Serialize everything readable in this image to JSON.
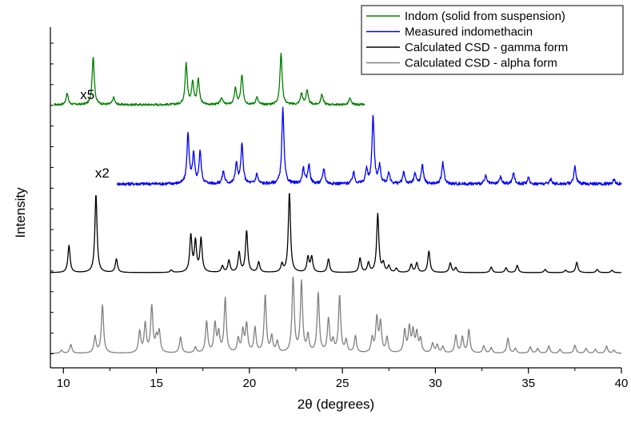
{
  "chart_data": {
    "type": "line",
    "xlabel": "2θ (degrees)",
    "ylabel": "Intensity",
    "xlim": [
      9.3,
      40
    ],
    "x_ticks": [
      10,
      15,
      20,
      25,
      30,
      35,
      40
    ],
    "grid": false,
    "legend_position": "top-right",
    "annotations": [
      {
        "text": "x5",
        "x": 10.9,
        "series": "Indom (solid from suspension)"
      },
      {
        "text": "x2",
        "x": 11.7,
        "series": "Measured indomethacin"
      }
    ],
    "series": [
      {
        "name": "Indom (solid from suspension)",
        "color": "#008000",
        "x_range": [
          9.5,
          26.2
        ],
        "noise": 1.3,
        "peaks": [
          [
            10.2,
            14
          ],
          [
            11.6,
            60
          ],
          [
            12.7,
            9
          ],
          [
            16.6,
            51
          ],
          [
            16.95,
            28
          ],
          [
            17.25,
            31
          ],
          [
            18.5,
            9
          ],
          [
            19.25,
            20
          ],
          [
            19.6,
            37
          ],
          [
            20.4,
            9
          ],
          [
            21.7,
            64
          ],
          [
            22.8,
            14
          ],
          [
            23.1,
            18
          ],
          [
            23.9,
            13
          ],
          [
            25.4,
            8
          ]
        ]
      },
      {
        "name": "Measured indomethacin",
        "color": "#0000ff",
        "x_range": [
          12.9,
          40
        ],
        "noise": 1.6,
        "peaks": [
          [
            16.7,
            52
          ],
          [
            17.0,
            30
          ],
          [
            17.35,
            33
          ],
          [
            18.6,
            13
          ],
          [
            19.3,
            21
          ],
          [
            19.6,
            41
          ],
          [
            20.4,
            10
          ],
          [
            21.8,
            78
          ],
          [
            22.9,
            16
          ],
          [
            23.2,
            20
          ],
          [
            24.0,
            16
          ],
          [
            25.6,
            12
          ],
          [
            26.3,
            14
          ],
          [
            26.65,
            71
          ],
          [
            27.0,
            18
          ],
          [
            27.5,
            11
          ],
          [
            28.3,
            12
          ],
          [
            28.9,
            10
          ],
          [
            29.3,
            20
          ],
          [
            30.4,
            22
          ],
          [
            32.7,
            8
          ],
          [
            33.5,
            7
          ],
          [
            34.2,
            11
          ],
          [
            35.0,
            6
          ],
          [
            36.2,
            5
          ],
          [
            37.5,
            18
          ],
          [
            39.6,
            5
          ]
        ]
      },
      {
        "name": "Calculated CSD - gamma form",
        "color": "#000000",
        "x_range": [
          9.3,
          40
        ],
        "noise": 0,
        "peaks": [
          [
            10.3,
            34
          ],
          [
            11.75,
            98
          ],
          [
            12.85,
            17
          ],
          [
            15.8,
            3
          ],
          [
            16.85,
            46
          ],
          [
            17.1,
            38
          ],
          [
            17.4,
            42
          ],
          [
            18.55,
            8
          ],
          [
            18.9,
            15
          ],
          [
            19.45,
            25
          ],
          [
            19.85,
            52
          ],
          [
            20.5,
            13
          ],
          [
            21.75,
            10
          ],
          [
            22.15,
            100
          ],
          [
            23.15,
            19
          ],
          [
            23.35,
            19
          ],
          [
            24.25,
            17
          ],
          [
            25.95,
            18
          ],
          [
            26.4,
            12
          ],
          [
            26.9,
            73
          ],
          [
            27.2,
            11
          ],
          [
            27.5,
            8
          ],
          [
            27.9,
            5
          ],
          [
            28.7,
            10
          ],
          [
            29.0,
            12
          ],
          [
            29.65,
            27
          ],
          [
            30.8,
            12
          ],
          [
            31.1,
            6
          ],
          [
            33.0,
            7
          ],
          [
            33.8,
            6
          ],
          [
            34.4,
            9
          ],
          [
            35.9,
            4
          ],
          [
            37.0,
            3
          ],
          [
            37.6,
            13
          ],
          [
            38.7,
            4
          ],
          [
            39.5,
            3
          ]
        ]
      },
      {
        "name": "Calculated CSD - alpha form",
        "color": "#808080",
        "x_range": [
          9.3,
          40
        ],
        "noise": 0,
        "peaks": [
          [
            9.9,
            4
          ],
          [
            10.4,
            11
          ],
          [
            11.7,
            21
          ],
          [
            12.1,
            60
          ],
          [
            14.1,
            27
          ],
          [
            14.4,
            36
          ],
          [
            14.75,
            58
          ],
          [
            15.0,
            17
          ],
          [
            15.15,
            26
          ],
          [
            16.3,
            20
          ],
          [
            17.1,
            7
          ],
          [
            17.7,
            39
          ],
          [
            18.15,
            36
          ],
          [
            18.35,
            24
          ],
          [
            18.7,
            68
          ],
          [
            19.4,
            17
          ],
          [
            19.65,
            27
          ],
          [
            19.85,
            35
          ],
          [
            20.3,
            31
          ],
          [
            20.85,
            72
          ],
          [
            21.2,
            20
          ],
          [
            21.5,
            14
          ],
          [
            22.35,
            94
          ],
          [
            22.8,
            88
          ],
          [
            23.15,
            21
          ],
          [
            23.7,
            74
          ],
          [
            24.25,
            42
          ],
          [
            24.5,
            14
          ],
          [
            24.85,
            71
          ],
          [
            25.2,
            15
          ],
          [
            25.7,
            21
          ],
          [
            26.6,
            18
          ],
          [
            26.85,
            43
          ],
          [
            27.05,
            37
          ],
          [
            27.4,
            19
          ],
          [
            28.35,
            28
          ],
          [
            28.6,
            31
          ],
          [
            28.8,
            26
          ],
          [
            29.0,
            24
          ],
          [
            29.2,
            17
          ],
          [
            29.85,
            12
          ],
          [
            30.1,
            10
          ],
          [
            30.4,
            8
          ],
          [
            31.1,
            22
          ],
          [
            31.45,
            20
          ],
          [
            31.8,
            29
          ],
          [
            32.6,
            9
          ],
          [
            33.0,
            7
          ],
          [
            33.9,
            19
          ],
          [
            34.3,
            6
          ],
          [
            35.1,
            8
          ],
          [
            35.5,
            6
          ],
          [
            36.1,
            9
          ],
          [
            36.7,
            5
          ],
          [
            37.5,
            10
          ],
          [
            38.1,
            6
          ],
          [
            38.6,
            5
          ],
          [
            39.2,
            9
          ],
          [
            39.6,
            4
          ]
        ]
      }
    ]
  }
}
